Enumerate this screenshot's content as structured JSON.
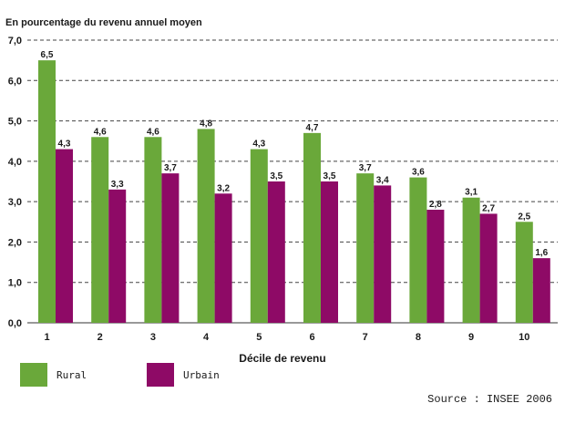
{
  "chart_data": {
    "type": "bar",
    "title": "En pourcentage du revenu annuel moyen",
    "xlabel": "Décile de revenu",
    "ylabel": "",
    "ylim": [
      0,
      7
    ],
    "yticks": [
      "0,0",
      "1,0",
      "2,0",
      "3,0",
      "4,0",
      "5,0",
      "6,0",
      "7,0"
    ],
    "categories": [
      "1",
      "2",
      "3",
      "4",
      "5",
      "6",
      "7",
      "8",
      "9",
      "10"
    ],
    "series": [
      {
        "name": "Rural",
        "color": "#6aa83a",
        "values": [
          6.5,
          4.6,
          4.6,
          4.8,
          4.3,
          4.7,
          3.7,
          3.6,
          3.1,
          2.5
        ],
        "labels": [
          "6,5",
          "4,6",
          "4,6",
          "4,8",
          "4,3",
          "4,7",
          "3,7",
          "3,6",
          "3,1",
          "2,5"
        ]
      },
      {
        "name": "Urbain",
        "color": "#8e0a66",
        "values": [
          4.3,
          3.3,
          3.7,
          3.2,
          3.5,
          3.5,
          3.4,
          2.8,
          2.7,
          1.6
        ],
        "labels": [
          "4,3",
          "3,3",
          "3,7",
          "3,2",
          "3,5",
          "3,5",
          "3,4",
          "2,8",
          "2,7",
          "1,6"
        ]
      }
    ],
    "grid": true,
    "legend_position": "bottom-left",
    "source": "Source : INSEE 2006"
  }
}
